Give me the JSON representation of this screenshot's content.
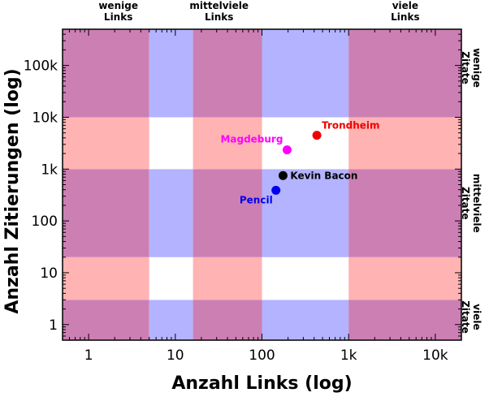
{
  "chart_data": {
    "type": "scatter",
    "xlabel": "Anzahl Links (log)",
    "ylabel": "Anzahl Zitierungen (log)",
    "x_scale": "log",
    "y_scale": "log",
    "xlim": [
      0.5,
      20000
    ],
    "ylim": [
      0.5,
      500000
    ],
    "x_ticks": [
      {
        "value": 1,
        "label": "1"
      },
      {
        "value": 10,
        "label": "10"
      },
      {
        "value": 100,
        "label": "100"
      },
      {
        "value": 1000,
        "label": "1k"
      },
      {
        "value": 10000,
        "label": "10k"
      }
    ],
    "y_ticks": [
      {
        "value": 1,
        "label": "1"
      },
      {
        "value": 10,
        "label": "10"
      },
      {
        "value": 100,
        "label": "100"
      },
      {
        "value": 1000,
        "label": "1k"
      },
      {
        "value": 10000,
        "label": "10k"
      },
      {
        "value": 100000,
        "label": "100k"
      }
    ],
    "x_bands": [
      {
        "from": 0.5,
        "to": 5,
        "highlighted": false
      },
      {
        "from": 5,
        "to": 16,
        "highlighted": true
      },
      {
        "from": 16,
        "to": 100,
        "highlighted": false
      },
      {
        "from": 100,
        "to": 1000,
        "highlighted": true
      },
      {
        "from": 1000,
        "to": 20000,
        "highlighted": false
      }
    ],
    "y_bands": [
      {
        "from": 0.5,
        "to": 3,
        "highlighted": false
      },
      {
        "from": 3,
        "to": 20,
        "highlighted": true
      },
      {
        "from": 20,
        "to": 1000,
        "highlighted": false
      },
      {
        "from": 1000,
        "to": 10000,
        "highlighted": true
      },
      {
        "from": 10000,
        "to": 500000,
        "highlighted": false
      }
    ],
    "band_colors": {
      "x_highlight": "#b3b3ff",
      "y_highlight": "#ffb3b3",
      "both": "#ffffff",
      "neither": "#cc7fb3"
    },
    "top_labels": [
      {
        "x": 2.2,
        "lines": [
          "wenige",
          "Links"
        ]
      },
      {
        "x": 32,
        "lines": [
          "mittelviele",
          "Links"
        ]
      },
      {
        "x": 4500,
        "lines": [
          "viele",
          "Links"
        ]
      }
    ],
    "right_labels": [
      {
        "y": 90000,
        "lines": [
          "wenige",
          "Zitate"
        ]
      },
      {
        "y": 220,
        "lines": [
          "mittelviele",
          "Zitate"
        ]
      },
      {
        "y": 1.4,
        "lines": [
          "viele",
          "Zitate"
        ]
      }
    ],
    "points": [
      {
        "name": "Trondheim",
        "x": 430,
        "y": 4500,
        "color": "#ee0000",
        "label_pos": "above-right"
      },
      {
        "name": "Magdeburg",
        "x": 195,
        "y": 2350,
        "color": "#ff00ff",
        "label_pos": "above-left"
      },
      {
        "name": "Kevin Bacon",
        "x": 175,
        "y": 750,
        "color": "#000000",
        "label_pos": "right"
      },
      {
        "name": "Pencil",
        "x": 145,
        "y": 390,
        "color": "#0000ee",
        "label_pos": "below-left"
      }
    ]
  }
}
